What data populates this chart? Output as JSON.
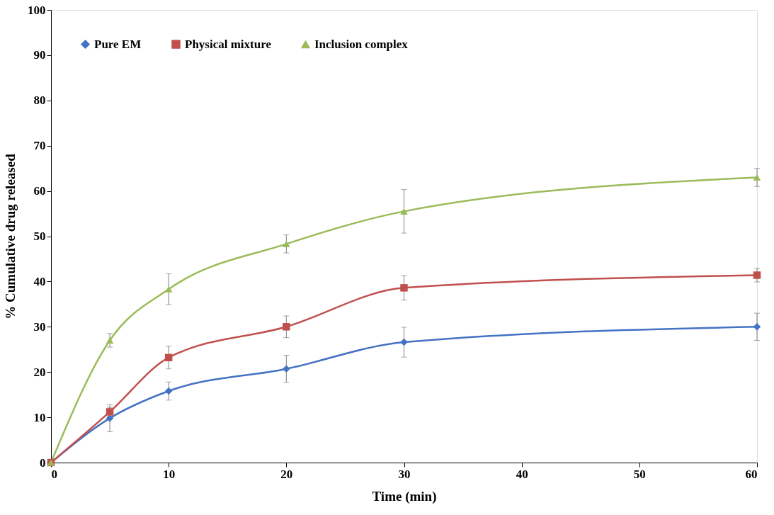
{
  "chart_data": {
    "type": "line",
    "xlabel": "Time (min)",
    "ylabel": "% Cumulative drug released",
    "x": [
      0,
      5,
      10,
      20,
      30,
      60
    ],
    "series": [
      {
        "name": "Pure EM",
        "color": "#4472c4",
        "marker": "diamond",
        "values": [
          0,
          9.8,
          15.8,
          20.7,
          26.6,
          30
        ],
        "errors": [
          null,
          3,
          2,
          3,
          3.3,
          3
        ]
      },
      {
        "name": "Physical mixture",
        "color": "#c0504d",
        "marker": "square",
        "values": [
          0,
          11.2,
          23.2,
          30,
          38.6,
          41.4
        ],
        "errors": [
          null,
          1,
          2.5,
          2.4,
          2.7,
          1.5
        ]
      },
      {
        "name": "Inclusion complex",
        "color": "#9bbb59",
        "marker": "triangle",
        "values": [
          0,
          27,
          38.3,
          48.3,
          55.5,
          63
        ],
        "errors": [
          null,
          1.5,
          3.4,
          2,
          4.8,
          2
        ]
      }
    ],
    "xlim": [
      0,
      60
    ],
    "xticks": [
      0,
      10,
      20,
      30,
      40,
      50,
      60
    ],
    "ylim": [
      0,
      100
    ],
    "yticks": [
      0,
      10,
      20,
      30,
      40,
      50,
      60,
      70,
      80,
      90,
      100
    ],
    "grid": false,
    "legend": "top left",
    "line_style": "solid"
  }
}
